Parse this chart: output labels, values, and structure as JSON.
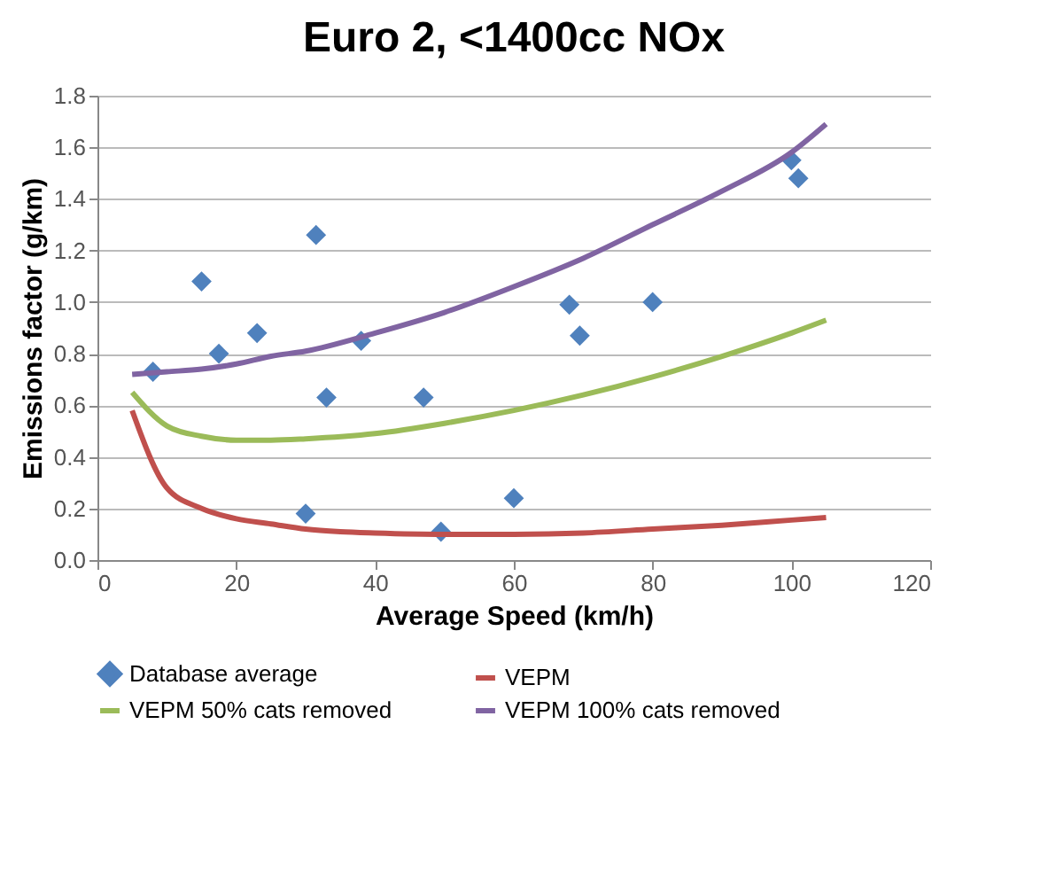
{
  "chart_data": {
    "type": "line",
    "title": "Euro 2, <1400cc NOx",
    "xlabel": "Average Speed (km/h)",
    "ylabel": "Emissions factor (g/km)",
    "xlim": [
      0,
      120
    ],
    "xticks": [
      0,
      20,
      40,
      60,
      80,
      100,
      120
    ],
    "ylim": [
      0,
      1.8
    ],
    "yticks": [
      {
        "value": 0,
        "label": "0.0"
      },
      {
        "value": 0.2,
        "label": "0.2"
      },
      {
        "value": 0.4,
        "label": "0.4"
      },
      {
        "value": 0.6,
        "label": "0.6"
      },
      {
        "value": 0.8,
        "label": "0.8"
      },
      {
        "value": 1.0,
        "label": "1.0"
      },
      {
        "value": 1.2,
        "label": "1.2"
      },
      {
        "value": 1.4,
        "label": "1.4"
      },
      {
        "value": 1.6,
        "label": "1.6"
      },
      {
        "value": 1.8,
        "label": "1.8"
      }
    ],
    "grid": "y",
    "legend": "bottom",
    "series": [
      {
        "name": "Database average",
        "type": "scatter",
        "marker": "diamond",
        "color": "#4f81bd",
        "x": [
          8,
          15,
          17.5,
          23,
          31.5,
          38,
          33,
          47,
          30,
          49.5,
          60,
          68,
          69.5,
          80,
          100,
          101
        ],
        "values": [
          0.73,
          1.08,
          0.8,
          0.88,
          1.26,
          0.85,
          0.63,
          0.63,
          0.18,
          0.11,
          0.24,
          0.99,
          0.87,
          1.0,
          1.55,
          1.48
        ]
      },
      {
        "name": "VEPM",
        "color": "#c0504d",
        "x": [
          5,
          10,
          15,
          20,
          25,
          30,
          35,
          40,
          50,
          60,
          70,
          80,
          90,
          100,
          105
        ],
        "values": [
          0.58,
          0.28,
          0.2,
          0.16,
          0.14,
          0.12,
          0.11,
          0.105,
          0.1,
          0.1,
          0.105,
          0.12,
          0.135,
          0.155,
          0.165
        ]
      },
      {
        "name": "VEPM 50% cats removed",
        "color": "#9bbb59",
        "x": [
          5,
          10,
          15,
          20,
          25,
          30,
          40,
          50,
          60,
          70,
          80,
          90,
          100,
          105
        ],
        "values": [
          0.65,
          0.52,
          0.48,
          0.465,
          0.465,
          0.47,
          0.49,
          0.53,
          0.58,
          0.64,
          0.71,
          0.79,
          0.88,
          0.93
        ]
      },
      {
        "name": "VEPM 100% cats removed",
        "color": "#8064a2",
        "x": [
          5,
          10,
          15,
          20,
          25,
          30,
          40,
          50,
          60,
          70,
          80,
          90,
          100,
          105
        ],
        "values": [
          0.72,
          0.73,
          0.74,
          0.76,
          0.79,
          0.81,
          0.88,
          0.96,
          1.06,
          1.17,
          1.3,
          1.43,
          1.58,
          1.69
        ]
      }
    ]
  }
}
